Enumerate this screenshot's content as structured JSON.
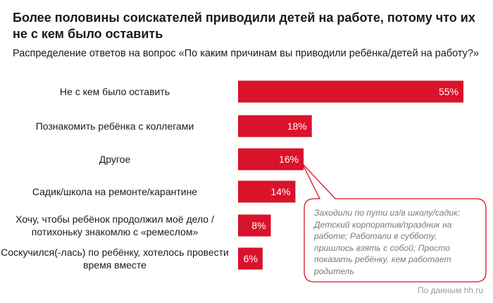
{
  "title": "Более половины соискателей приводили детей на работе, потому что их не с кем было оставить",
  "subtitle": "Распределение ответов на вопрос «По каким причинам вы приводили ребёнка/детей на работу?»",
  "note": "Заходили по пути из/в школу/садик; Детский корпоратив/праздник на работе; Работали в субботу, пришлось взять с собой; Просто показать ребёнку, кем работает родитель",
  "source": "По данным hh.ru",
  "colors": {
    "bar": "#d9132a",
    "note_border": "#d9132a"
  },
  "chart_data": {
    "type": "bar",
    "orientation": "horizontal",
    "title": "Более половины соискателей приводили детей на работе, потому что их не с кем было оставить",
    "subtitle": "Распределение ответов на вопрос «По каким причинам вы приводили ребёнка/детей на работу?»",
    "categories": [
      "Не с кем было оставить",
      "Познакомить ребёнка с коллегами",
      "Другое",
      "Садик/школа на ремонте/карантине",
      "Хочу, чтобы ребёнок продолжил моё дело / потихоньку знакомлю с «ремеслом»",
      "Соскучился(-лась) по ребёнку, хотелось провести время вместе"
    ],
    "values": [
      55,
      18,
      16,
      14,
      8,
      6
    ],
    "value_labels": [
      "55%",
      "18%",
      "16%",
      "14%",
      "8%",
      "6%"
    ],
    "unit": "%",
    "xlim": [
      0,
      55
    ],
    "callout_category": "Другое"
  }
}
